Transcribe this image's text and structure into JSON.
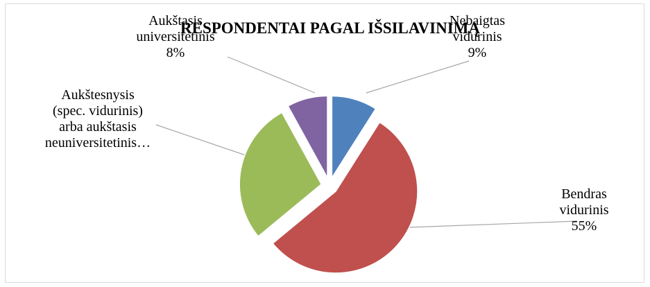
{
  "chart_data": {
    "type": "pie",
    "title": "RESPONDENTAI PAGAL IŠSILAVINIMĄ",
    "slices": [
      {
        "label_lines": [
          "Nebaigtas",
          "vidurinis",
          "9%"
        ],
        "value": 9,
        "color": "#4f81bd"
      },
      {
        "label_lines": [
          "Bendras",
          "vidurinis",
          "55%"
        ],
        "value": 55,
        "color": "#c0504d"
      },
      {
        "label_lines": [
          "Aukštesnysis",
          "(spec. vidurinis)",
          "arba aukštasis",
          "neuniversitetinis…"
        ],
        "value": 28,
        "color": "#9bbb59"
      },
      {
        "label_lines": [
          "Aukštasis",
          "universitetinis",
          "8%"
        ],
        "value": 8,
        "color": "#8064a2"
      }
    ]
  }
}
